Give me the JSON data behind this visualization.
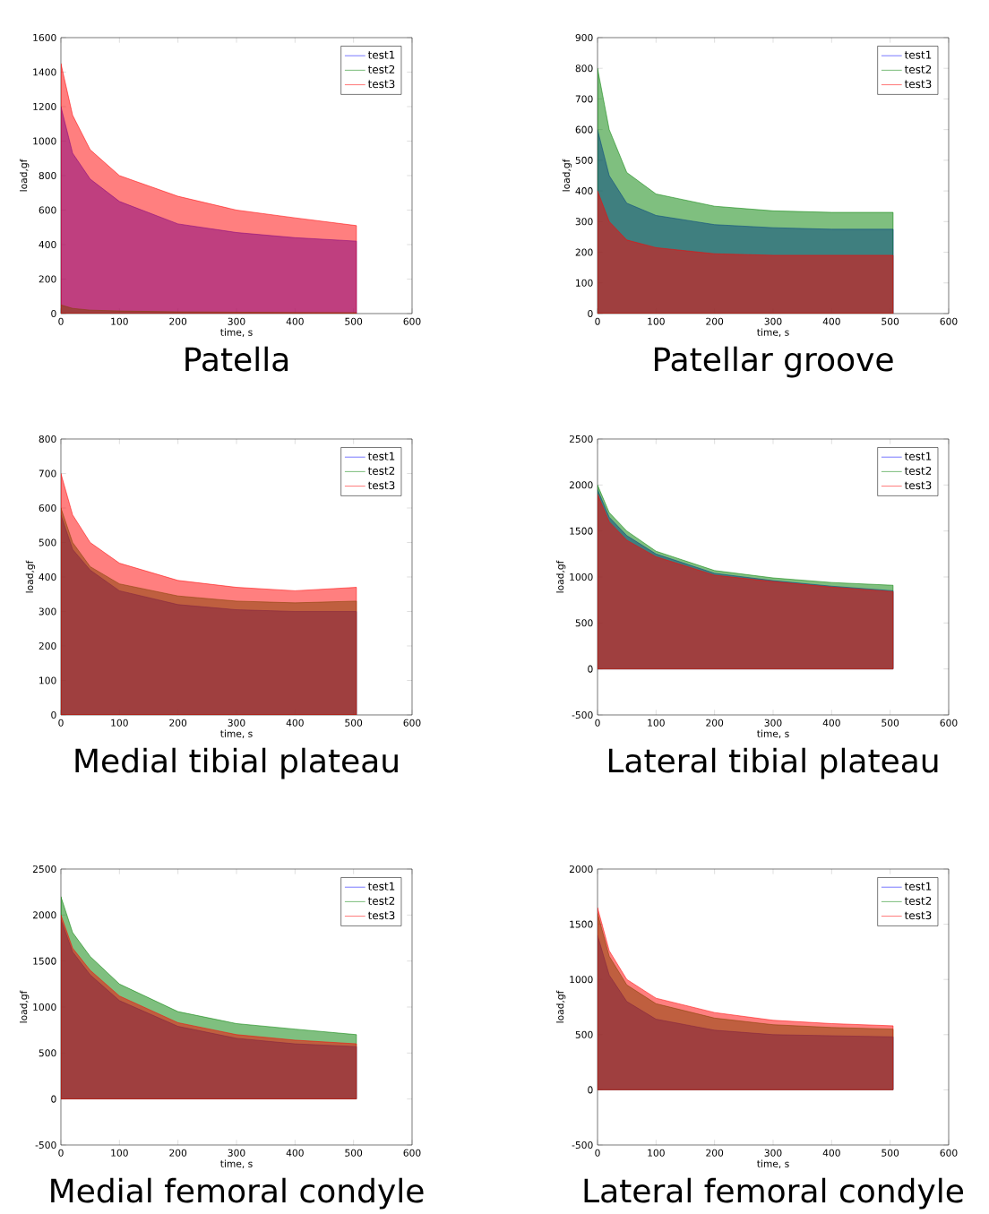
{
  "chart_data": [
    {
      "type": "area",
      "title": "Patella",
      "xlabel": "time, s",
      "ylabel": "load,gf",
      "x": [
        0,
        20,
        50,
        100,
        200,
        300,
        400,
        505
      ],
      "xlim": [
        0,
        600
      ],
      "xticks": [
        0,
        100,
        200,
        300,
        400,
        500,
        600
      ],
      "ylim": [
        0,
        1600
      ],
      "yticks": [
        0,
        200,
        400,
        600,
        800,
        1000,
        1200,
        1400,
        1600
      ],
      "legend": "top right",
      "series": [
        {
          "name": "test1",
          "color": "#0000ff",
          "values": [
            1200,
            930,
            780,
            650,
            520,
            470,
            440,
            420
          ]
        },
        {
          "name": "test2",
          "color": "#008000",
          "values": [
            50,
            30,
            20,
            15,
            10,
            8,
            6,
            5
          ]
        },
        {
          "name": "test3",
          "color": "#ff0000",
          "values": [
            1450,
            1150,
            950,
            800,
            680,
            600,
            555,
            510
          ]
        }
      ]
    },
    {
      "type": "area",
      "title": "Patellar groove",
      "xlabel": "time, s",
      "ylabel": "load,gf",
      "x": [
        0,
        20,
        50,
        100,
        200,
        300,
        400,
        505
      ],
      "xlim": [
        0,
        600
      ],
      "xticks": [
        0,
        100,
        200,
        300,
        400,
        500,
        600
      ],
      "ylim": [
        0,
        900
      ],
      "yticks": [
        0,
        100,
        200,
        300,
        400,
        500,
        600,
        700,
        800,
        900
      ],
      "legend": "top right",
      "series": [
        {
          "name": "test1",
          "color": "#0000ff",
          "values": [
            600,
            450,
            360,
            320,
            290,
            280,
            275,
            275
          ]
        },
        {
          "name": "test2",
          "color": "#008000",
          "values": [
            800,
            600,
            460,
            390,
            350,
            335,
            330,
            330
          ]
        },
        {
          "name": "test3",
          "color": "#ff0000",
          "values": [
            400,
            300,
            240,
            215,
            195,
            190,
            190,
            190
          ]
        }
      ]
    },
    {
      "type": "area",
      "title": "Medial tibial plateau",
      "xlabel": "time, s",
      "ylabel": "load,gf",
      "x": [
        0,
        20,
        50,
        100,
        200,
        300,
        400,
        505
      ],
      "xlim": [
        0,
        600
      ],
      "xticks": [
        0,
        100,
        200,
        300,
        400,
        500,
        600
      ],
      "ylim": [
        0,
        800
      ],
      "yticks": [
        0,
        100,
        200,
        300,
        400,
        500,
        600,
        700,
        800
      ],
      "legend": "top right",
      "series": [
        {
          "name": "test1",
          "color": "#0000ff",
          "values": [
            580,
            480,
            420,
            360,
            320,
            305,
            300,
            300
          ]
        },
        {
          "name": "test2",
          "color": "#008000",
          "values": [
            600,
            500,
            430,
            380,
            345,
            330,
            325,
            330
          ]
        },
        {
          "name": "test3",
          "color": "#ff0000",
          "values": [
            700,
            580,
            500,
            440,
            390,
            370,
            360,
            370
          ]
        }
      ]
    },
    {
      "type": "area",
      "title": "Lateral  tibial plateau",
      "xlabel": "time, s",
      "ylabel": "load,gf",
      "x": [
        0,
        20,
        50,
        100,
        200,
        300,
        400,
        505
      ],
      "xlim": [
        0,
        600
      ],
      "xticks": [
        0,
        100,
        200,
        300,
        400,
        500,
        600
      ],
      "ylim": [
        -500,
        2500
      ],
      "yticks": [
        -500,
        0,
        500,
        1000,
        1500,
        2000,
        2500
      ],
      "legend": "top right",
      "series": [
        {
          "name": "test1",
          "color": "#0000ff",
          "values": [
            1950,
            1650,
            1450,
            1250,
            1040,
            960,
            900,
            850
          ]
        },
        {
          "name": "test2",
          "color": "#008000",
          "values": [
            2000,
            1700,
            1500,
            1280,
            1070,
            990,
            940,
            910
          ]
        },
        {
          "name": "test3",
          "color": "#ff0000",
          "values": [
            1900,
            1600,
            1400,
            1220,
            1020,
            950,
            890,
            840
          ]
        }
      ]
    },
    {
      "type": "area",
      "title": "Medial femoral condyle",
      "xlabel": "time, s",
      "ylabel": "load,gf",
      "x": [
        0,
        20,
        50,
        100,
        200,
        300,
        400,
        505
      ],
      "xlim": [
        0,
        600
      ],
      "xticks": [
        0,
        100,
        200,
        300,
        400,
        500,
        600
      ],
      "ylim": [
        -500,
        2500
      ],
      "yticks": [
        -500,
        0,
        500,
        1000,
        1500,
        2000,
        2500
      ],
      "legend": "top right",
      "series": [
        {
          "name": "test1",
          "color": "#0000ff",
          "values": [
            1950,
            1600,
            1350,
            1070,
            790,
            660,
            600,
            570
          ]
        },
        {
          "name": "test2",
          "color": "#008000",
          "values": [
            2200,
            1810,
            1550,
            1250,
            950,
            820,
            760,
            700
          ]
        },
        {
          "name": "test3",
          "color": "#ff0000",
          "values": [
            2000,
            1640,
            1400,
            1120,
            830,
            700,
            640,
            600
          ]
        }
      ]
    },
    {
      "type": "area",
      "title": "Lateral femoral condyle",
      "xlabel": "time, s",
      "ylabel": "load,gf",
      "x": [
        0,
        20,
        50,
        100,
        200,
        300,
        400,
        505
      ],
      "xlim": [
        0,
        600
      ],
      "xticks": [
        0,
        100,
        200,
        300,
        400,
        500,
        600
      ],
      "ylim": [
        -500,
        2000
      ],
      "yticks": [
        -500,
        0,
        500,
        1000,
        1500,
        2000
      ],
      "legend": "top right",
      "series": [
        {
          "name": "test1",
          "color": "#0000ff",
          "values": [
            1400,
            1040,
            800,
            640,
            540,
            500,
            490,
            480
          ]
        },
        {
          "name": "test2",
          "color": "#008000",
          "values": [
            1600,
            1210,
            950,
            780,
            650,
            590,
            565,
            550
          ]
        },
        {
          "name": "test3",
          "color": "#ff0000",
          "values": [
            1650,
            1260,
            1000,
            830,
            700,
            630,
            600,
            580
          ]
        }
      ]
    }
  ]
}
